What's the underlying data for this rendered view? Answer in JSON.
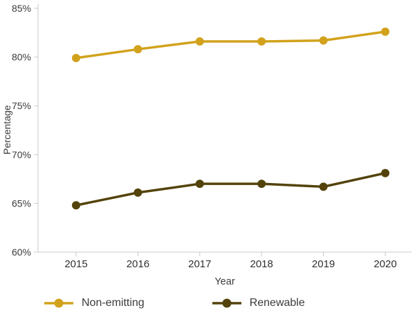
{
  "chart_data": {
    "type": "line",
    "x": [
      "2015",
      "2016",
      "2017",
      "2018",
      "2019",
      "2020"
    ],
    "series": [
      {
        "name": "Non-emitting",
        "color": "#D2A21C",
        "values": [
          79.9,
          80.8,
          81.6,
          81.6,
          81.7,
          82.6
        ]
      },
      {
        "name": "Renewable",
        "color": "#53430B",
        "values": [
          64.8,
          66.1,
          67.0,
          67.0,
          66.7,
          68.1
        ]
      }
    ],
    "title": "",
    "xlabel": "Year",
    "ylabel": "Percentage",
    "ylim": [
      60,
      85
    ],
    "yticks": [
      60,
      65,
      70,
      75,
      80,
      85
    ],
    "ytick_suffix": "%",
    "grid": false,
    "legend_position": "bottom",
    "axis_color": "#c9c9c9",
    "text_color": "#3b3b3b",
    "marker_radius": 6,
    "line_width": 3.5
  }
}
